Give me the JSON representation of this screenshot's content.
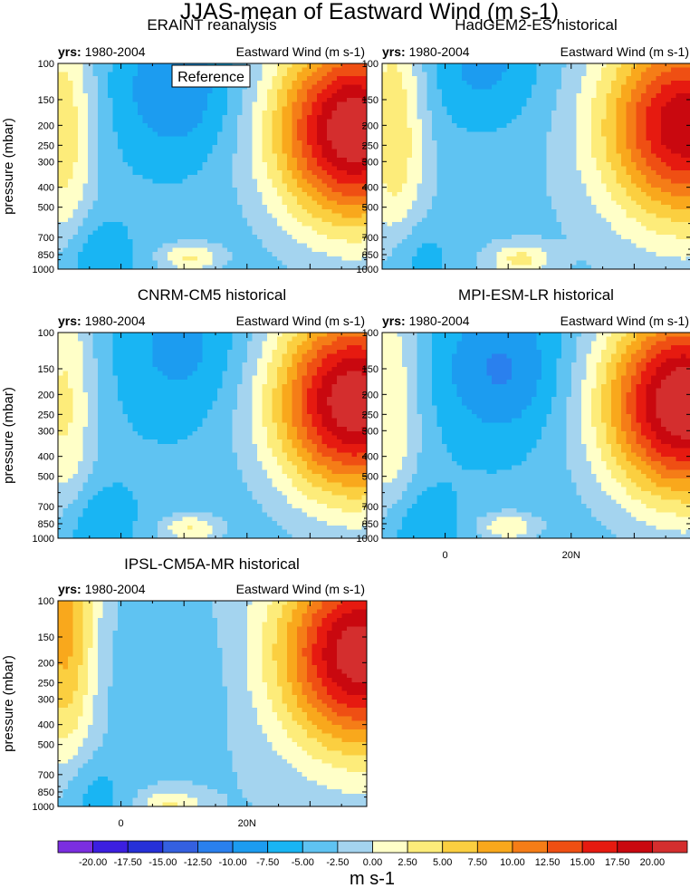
{
  "figure": {
    "title": "JJAS-mean of Eastward Wind (m s-1)",
    "colorbar_label": "m s-1"
  },
  "chart_data": {
    "type": "heatmap",
    "title": "JJAS-mean of Eastward Wind (m s-1)",
    "units": "m s-1",
    "ylabel": "pressure (mbar)",
    "y_scale": "log",
    "y_ticks": [
      100,
      150,
      200,
      250,
      300,
      400,
      500,
      700,
      850,
      1000
    ],
    "ylim": [
      1000,
      100
    ],
    "x_tick_labels": [
      "0",
      "20N"
    ],
    "x_ticks": [
      0,
      20
    ],
    "xlim": [
      -10,
      39
    ],
    "levels": [
      -20,
      -17.5,
      -15,
      -12.5,
      -10,
      -7.5,
      -5,
      -2.5,
      0,
      2.5,
      5,
      7.5,
      10,
      12.5,
      15,
      17.5,
      20
    ],
    "level_labels": [
      "-20.00",
      "-17.50",
      "-15.00",
      "-12.50",
      "-10.00",
      "-7.50",
      "-5.00",
      "-2.50",
      "0.00",
      "2.50",
      "5.00",
      "7.50",
      "10.00",
      "12.50",
      "15.00",
      "17.50",
      "20.00"
    ],
    "colors": [
      "#7b2ee0",
      "#3c1fe0",
      "#2630d8",
      "#3460e0",
      "#2a80ee",
      "#1c9cf0",
      "#19b5f3",
      "#5fc3f2",
      "#a4d4ef",
      "#ffffc8",
      "#fdec7a",
      "#fbcf40",
      "#f9a81c",
      "#f57d17",
      "#ef4f13",
      "#e61a10",
      "#c9080f",
      "#d42e2e"
    ],
    "panels": [
      {
        "name": "ERAINT reanalysis",
        "years_label": "yrs:",
        "years": "1980-2004",
        "variable": "Eastward Wind (m s-1)",
        "annotation": "Reference",
        "show_x_labels": false
      },
      {
        "name": "HadGEM2-ES historical",
        "years_label": "yrs:",
        "years": "1980-2004",
        "variable": "Eastward Wind (m s-1)",
        "annotation": "",
        "show_x_labels": false
      },
      {
        "name": "CNRM-CM5 historical",
        "years_label": "yrs:",
        "years": "1980-2004",
        "variable": "Eastward Wind (m s-1)",
        "annotation": "",
        "show_x_labels": false
      },
      {
        "name": "MPI-ESM-LR historical",
        "years_label": "yrs:",
        "years": "1980-2004",
        "variable": "Eastward Wind (m s-1)",
        "annotation": "",
        "show_x_labels": true
      },
      {
        "name": "IPSL-CM5A-MR historical",
        "years_label": "yrs:",
        "years": "1980-2004",
        "variable": "Eastward Wind (m s-1)",
        "annotation": "",
        "show_x_labels": true
      }
    ],
    "grid": false,
    "legend": "bottom colorbar"
  }
}
